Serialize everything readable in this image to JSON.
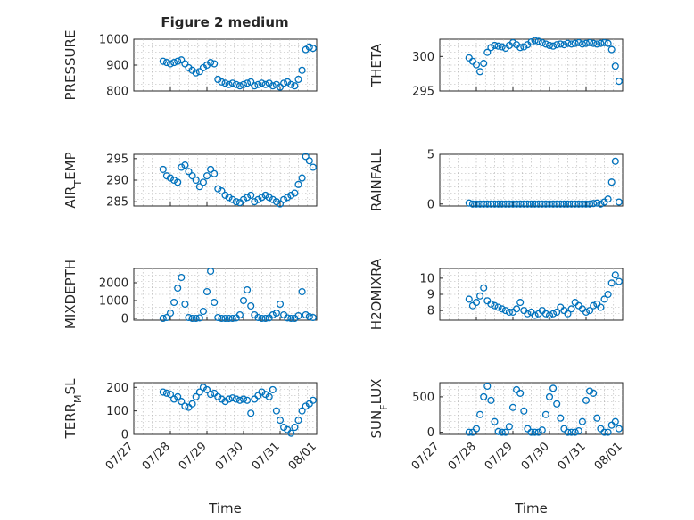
{
  "figure": {
    "title": "Figure 2 medium",
    "marker_color": "#0072BD",
    "grid": true,
    "marker": "o"
  },
  "chart_data": [
    {
      "type": "scatter",
      "ylabel_parts": [
        [
          "PRESSURE",
          false
        ]
      ],
      "ylim": [
        800,
        1000
      ],
      "yticks": [
        800,
        900,
        1000
      ],
      "xlim": [
        0,
        5
      ],
      "xticks": [
        0,
        1,
        2,
        3,
        4,
        5
      ],
      "xticklabels": [
        "",
        "",
        "",
        "",
        "",
        ""
      ],
      "x": [
        0.8,
        0.9,
        1.0,
        1.1,
        1.2,
        1.3,
        1.4,
        1.5,
        1.6,
        1.7,
        1.8,
        1.9,
        2.0,
        2.1,
        2.2,
        2.3,
        2.4,
        2.5,
        2.6,
        2.7,
        2.8,
        2.9,
        3.0,
        3.1,
        3.2,
        3.3,
        3.4,
        3.5,
        3.6,
        3.7,
        3.8,
        3.9,
        4.0,
        4.1,
        4.2,
        4.3,
        4.4,
        4.5,
        4.6,
        4.7,
        4.8,
        4.9
      ],
      "y": [
        915,
        910,
        905,
        910,
        915,
        920,
        905,
        890,
        880,
        870,
        875,
        890,
        900,
        910,
        905,
        845,
        835,
        830,
        825,
        830,
        825,
        820,
        825,
        830,
        835,
        820,
        825,
        830,
        825,
        830,
        820,
        825,
        815,
        830,
        835,
        825,
        820,
        845,
        880,
        960,
        970,
        965
      ]
    },
    {
      "type": "scatter",
      "ylabel_parts": [
        [
          "THETA",
          false
        ]
      ],
      "ylim": [
        295,
        302.5
      ],
      "yticks": [
        295,
        300
      ],
      "xlim": [
        0,
        5
      ],
      "xticks": [
        0,
        1,
        2,
        3,
        4,
        5
      ],
      "xticklabels": [
        "",
        "",
        "",
        "",
        "",
        ""
      ],
      "x": [
        0.8,
        0.9,
        1.0,
        1.1,
        1.2,
        1.3,
        1.4,
        1.5,
        1.6,
        1.7,
        1.8,
        1.9,
        2.0,
        2.1,
        2.2,
        2.3,
        2.4,
        2.5,
        2.6,
        2.7,
        2.8,
        2.9,
        3.0,
        3.1,
        3.2,
        3.3,
        3.4,
        3.5,
        3.6,
        3.7,
        3.8,
        3.9,
        4.0,
        4.1,
        4.2,
        4.3,
        4.4,
        4.5,
        4.6,
        4.7,
        4.8,
        4.9
      ],
      "y": [
        299.8,
        299.3,
        298.8,
        297.8,
        299.0,
        300.6,
        301.3,
        301.6,
        301.5,
        301.4,
        301.2,
        301.6,
        302.0,
        301.7,
        301.3,
        301.4,
        301.7,
        302.1,
        302.3,
        302.2,
        302.0,
        301.8,
        301.6,
        301.5,
        301.7,
        301.8,
        301.7,
        301.9,
        301.8,
        301.9,
        302.0,
        301.8,
        301.9,
        302.0,
        301.9,
        301.8,
        301.9,
        302.0,
        301.9,
        301.0,
        298.6,
        296.4
      ]
    },
    {
      "type": "scatter",
      "ylabel_parts": [
        [
          "AIR",
          false
        ],
        [
          "T",
          true
        ],
        [
          "EMP",
          false
        ]
      ],
      "ylim": [
        284,
        296
      ],
      "yticks": [
        285,
        290,
        295
      ],
      "xlim": [
        0,
        5
      ],
      "xticks": [
        0,
        1,
        2,
        3,
        4,
        5
      ],
      "xticklabels": [
        "",
        "",
        "",
        "",
        "",
        ""
      ],
      "x": [
        0.8,
        0.9,
        1.0,
        1.1,
        1.2,
        1.3,
        1.4,
        1.5,
        1.6,
        1.7,
        1.8,
        1.9,
        2.0,
        2.1,
        2.2,
        2.3,
        2.4,
        2.5,
        2.6,
        2.7,
        2.8,
        2.9,
        3.0,
        3.1,
        3.2,
        3.3,
        3.4,
        3.5,
        3.6,
        3.7,
        3.8,
        3.9,
        4.0,
        4.1,
        4.2,
        4.3,
        4.4,
        4.5,
        4.6,
        4.7,
        4.8,
        4.9
      ],
      "y": [
        292.5,
        291.0,
        290.5,
        290.0,
        289.5,
        293.0,
        293.5,
        292.0,
        291.0,
        290.0,
        288.5,
        289.5,
        291.0,
        292.5,
        291.5,
        288.0,
        287.5,
        286.5,
        286.0,
        285.5,
        285.0,
        284.8,
        285.5,
        286.0,
        286.5,
        285.0,
        285.5,
        286.0,
        286.5,
        286.0,
        285.5,
        285.0,
        284.5,
        285.5,
        286.0,
        286.5,
        287.0,
        289.0,
        290.5,
        295.5,
        294.5,
        293.0
      ]
    },
    {
      "type": "scatter",
      "ylabel_parts": [
        [
          "RAINFALL",
          false
        ]
      ],
      "ylim": [
        -0.2,
        5
      ],
      "yticks": [
        0,
        5
      ],
      "xlim": [
        0,
        5
      ],
      "xticks": [
        0,
        1,
        2,
        3,
        4,
        5
      ],
      "xticklabels": [
        "",
        "",
        "",
        "",
        "",
        ""
      ],
      "x": [
        0.8,
        0.9,
        1.0,
        1.1,
        1.2,
        1.3,
        1.4,
        1.5,
        1.6,
        1.7,
        1.8,
        1.9,
        2.0,
        2.1,
        2.2,
        2.3,
        2.4,
        2.5,
        2.6,
        2.7,
        2.8,
        2.9,
        3.0,
        3.1,
        3.2,
        3.3,
        3.4,
        3.5,
        3.6,
        3.7,
        3.8,
        3.9,
        4.0,
        4.1,
        4.2,
        4.3,
        4.4,
        4.5,
        4.6,
        4.7,
        4.8,
        4.9
      ],
      "y": [
        0.1,
        0,
        0,
        0,
        0,
        0,
        0,
        0,
        0,
        0,
        0,
        0,
        0,
        0,
        0,
        0,
        0,
        0,
        0,
        0,
        0,
        0,
        0,
        0,
        0,
        0,
        0,
        0,
        0,
        0,
        0,
        0,
        0,
        0,
        0.05,
        0.1,
        0,
        0.2,
        0.5,
        2.2,
        4.3,
        0.2
      ]
    },
    {
      "type": "scatter",
      "ylabel_parts": [
        [
          "MIXDEPTH",
          false
        ]
      ],
      "ylim": [
        -100,
        2800
      ],
      "yticks": [
        0,
        1000,
        2000
      ],
      "xlim": [
        0,
        5
      ],
      "xticks": [
        0,
        1,
        2,
        3,
        4,
        5
      ],
      "xticklabels": [
        "",
        "",
        "",
        "",
        "",
        ""
      ],
      "x": [
        0.8,
        0.9,
        1.0,
        1.1,
        1.2,
        1.3,
        1.4,
        1.5,
        1.6,
        1.7,
        1.8,
        1.9,
        2.0,
        2.1,
        2.2,
        2.3,
        2.4,
        2.5,
        2.6,
        2.7,
        2.8,
        2.9,
        3.0,
        3.1,
        3.2,
        3.3,
        3.4,
        3.5,
        3.6,
        3.7,
        3.8,
        3.9,
        4.0,
        4.1,
        4.2,
        4.3,
        4.4,
        4.5,
        4.6,
        4.7,
        4.8,
        4.9
      ],
      "y": [
        0,
        50,
        300,
        900,
        1700,
        2300,
        800,
        50,
        0,
        0,
        30,
        400,
        1500,
        2650,
        900,
        50,
        0,
        0,
        0,
        0,
        30,
        200,
        1000,
        1600,
        700,
        200,
        50,
        0,
        0,
        30,
        200,
        300,
        800,
        200,
        30,
        0,
        0,
        150,
        1500,
        200,
        100,
        50
      ]
    },
    {
      "type": "scatter",
      "ylabel_parts": [
        [
          "H2OMIXRA",
          false
        ]
      ],
      "ylim": [
        7.4,
        10.6
      ],
      "yticks": [
        8,
        9,
        10
      ],
      "xlim": [
        0,
        5
      ],
      "xticks": [
        0,
        1,
        2,
        3,
        4,
        5
      ],
      "xticklabels": [
        "",
        "",
        "",
        "",
        "",
        ""
      ],
      "x": [
        0.8,
        0.9,
        1.0,
        1.1,
        1.2,
        1.3,
        1.4,
        1.5,
        1.6,
        1.7,
        1.8,
        1.9,
        2.0,
        2.1,
        2.2,
        2.3,
        2.4,
        2.5,
        2.6,
        2.7,
        2.8,
        2.9,
        3.0,
        3.1,
        3.2,
        3.3,
        3.4,
        3.5,
        3.6,
        3.7,
        3.8,
        3.9,
        4.0,
        4.1,
        4.2,
        4.3,
        4.4,
        4.5,
        4.6,
        4.7,
        4.8,
        4.9
      ],
      "y": [
        8.7,
        8.3,
        8.5,
        8.9,
        9.4,
        8.6,
        8.4,
        8.3,
        8.2,
        8.1,
        8.0,
        7.9,
        7.9,
        8.1,
        8.5,
        8.0,
        7.8,
        7.9,
        7.7,
        7.8,
        8.0,
        7.8,
        7.7,
        7.8,
        7.9,
        8.2,
        8.0,
        7.8,
        8.1,
        8.5,
        8.3,
        8.1,
        7.9,
        8.0,
        8.3,
        8.4,
        8.2,
        8.7,
        9.0,
        9.7,
        10.2,
        9.8
      ]
    },
    {
      "type": "scatter",
      "ylabel_parts": [
        [
          "TERR",
          false
        ],
        [
          "M",
          true
        ],
        [
          "SL",
          false
        ]
      ],
      "ylim": [
        0,
        220
      ],
      "yticks": [
        0,
        100,
        200
      ],
      "xlim": [
        0,
        5
      ],
      "xticks": [
        0,
        1,
        2,
        3,
        4,
        5
      ],
      "xticklabels": [
        "07/27",
        "07/28",
        "07/29",
        "07/30",
        "07/31",
        "08/01"
      ],
      "xlabel": "Time",
      "x": [
        0.8,
        0.9,
        1.0,
        1.1,
        1.2,
        1.3,
        1.4,
        1.5,
        1.6,
        1.7,
        1.8,
        1.9,
        2.0,
        2.1,
        2.2,
        2.3,
        2.4,
        2.5,
        2.6,
        2.7,
        2.8,
        2.9,
        3.0,
        3.1,
        3.2,
        3.3,
        3.4,
        3.5,
        3.6,
        3.7,
        3.8,
        3.9,
        4.0,
        4.1,
        4.2,
        4.3,
        4.4,
        4.5,
        4.6,
        4.7,
        4.8,
        4.9
      ],
      "y": [
        180,
        175,
        170,
        150,
        160,
        140,
        120,
        115,
        130,
        160,
        180,
        200,
        190,
        170,
        175,
        160,
        150,
        140,
        150,
        155,
        150,
        145,
        150,
        145,
        90,
        150,
        165,
        180,
        170,
        160,
        190,
        100,
        60,
        30,
        20,
        5,
        30,
        60,
        100,
        120,
        130,
        145
      ]
    },
    {
      "type": "scatter",
      "ylabel_parts": [
        [
          "SUN",
          false
        ],
        [
          "F",
          true
        ],
        [
          "LUX",
          false
        ]
      ],
      "ylim": [
        -30,
        700
      ],
      "yticks": [
        0,
        500
      ],
      "xlim": [
        0,
        5
      ],
      "xticks": [
        0,
        1,
        2,
        3,
        4,
        5
      ],
      "xticklabels": [
        "07/27",
        "07/28",
        "07/29",
        "07/30",
        "07/31",
        "08/01"
      ],
      "xlabel": "Time",
      "x": [
        0.8,
        0.9,
        1.0,
        1.1,
        1.2,
        1.3,
        1.4,
        1.5,
        1.6,
        1.7,
        1.8,
        1.9,
        2.0,
        2.1,
        2.2,
        2.3,
        2.4,
        2.5,
        2.6,
        2.7,
        2.8,
        2.9,
        3.0,
        3.1,
        3.2,
        3.3,
        3.4,
        3.5,
        3.6,
        3.7,
        3.8,
        3.9,
        4.0,
        4.1,
        4.2,
        4.3,
        4.4,
        4.5,
        4.6,
        4.7,
        4.8,
        4.9
      ],
      "y": [
        0,
        0,
        50,
        250,
        500,
        650,
        450,
        150,
        10,
        0,
        0,
        80,
        350,
        600,
        550,
        300,
        50,
        0,
        0,
        0,
        30,
        250,
        500,
        620,
        400,
        200,
        50,
        0,
        0,
        0,
        20,
        150,
        450,
        580,
        550,
        200,
        50,
        0,
        0,
        100,
        150,
        50
      ]
    }
  ]
}
